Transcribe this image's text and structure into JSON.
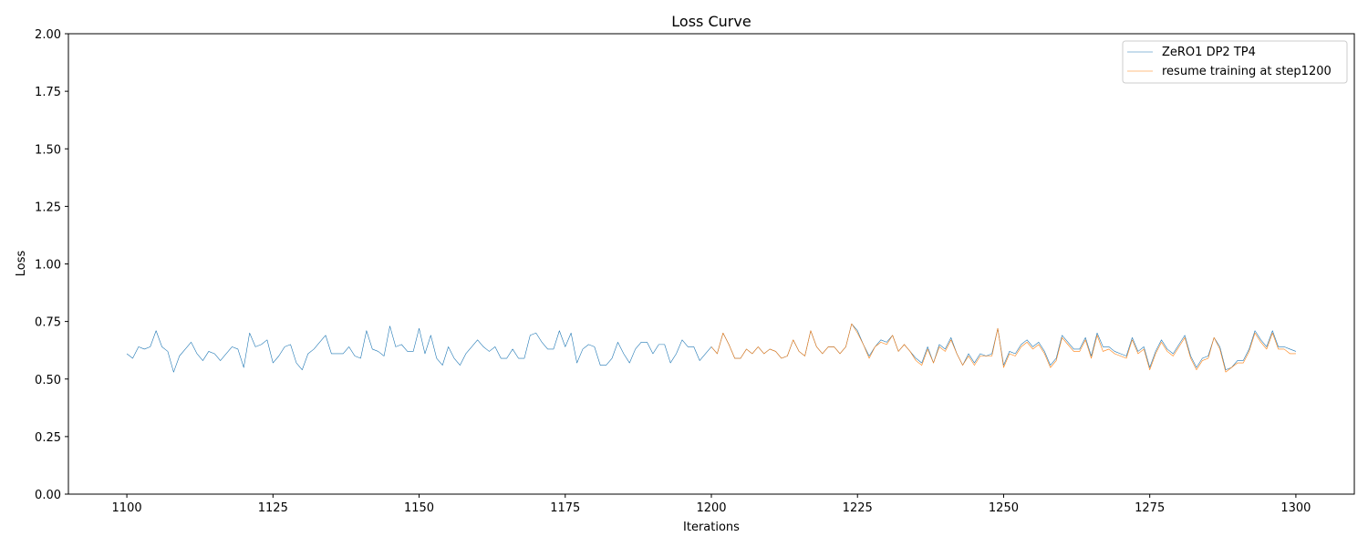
{
  "chart_data": {
    "type": "line",
    "title": "Loss Curve",
    "xlabel": "Iterations",
    "ylabel": "Loss",
    "xlim": [
      1090,
      1310
    ],
    "ylim": [
      0.0,
      2.0
    ],
    "xticks": [
      1100,
      1125,
      1150,
      1175,
      1200,
      1225,
      1250,
      1275,
      1300
    ],
    "xtick_labels": [
      "1100",
      "1125",
      "1150",
      "1175",
      "1200",
      "1225",
      "1250",
      "1275",
      "1300"
    ],
    "yticks": [
      0.0,
      0.25,
      0.5,
      0.75,
      1.0,
      1.25,
      1.5,
      1.75,
      2.0
    ],
    "ytick_labels": [
      "0.00",
      "0.25",
      "0.50",
      "0.75",
      "1.00",
      "1.25",
      "1.50",
      "1.75",
      "2.00"
    ],
    "grid": false,
    "legend_position": "top-right",
    "series": [
      {
        "name": "ZeRO1 DP2 TP4",
        "color": "#1f77b4",
        "x_start": 1100,
        "x_step": 1,
        "y": [
          0.61,
          0.59,
          0.64,
          0.63,
          0.64,
          0.71,
          0.64,
          0.62,
          0.53,
          0.6,
          0.63,
          0.66,
          0.61,
          0.58,
          0.62,
          0.61,
          0.58,
          0.61,
          0.64,
          0.63,
          0.55,
          0.7,
          0.64,
          0.65,
          0.67,
          0.57,
          0.6,
          0.64,
          0.65,
          0.57,
          0.54,
          0.61,
          0.63,
          0.66,
          0.69,
          0.61,
          0.61,
          0.61,
          0.64,
          0.6,
          0.59,
          0.71,
          0.63,
          0.62,
          0.6,
          0.73,
          0.64,
          0.65,
          0.62,
          0.62,
          0.72,
          0.61,
          0.69,
          0.59,
          0.56,
          0.64,
          0.59,
          0.56,
          0.61,
          0.64,
          0.67,
          0.64,
          0.62,
          0.64,
          0.59,
          0.59,
          0.63,
          0.59,
          0.59,
          0.69,
          0.7,
          0.66,
          0.63,
          0.63,
          0.71,
          0.64,
          0.7,
          0.57,
          0.63,
          0.65,
          0.64,
          0.56,
          0.56,
          0.59,
          0.66,
          0.61,
          0.57,
          0.63,
          0.66,
          0.66,
          0.61,
          0.65,
          0.65,
          0.57,
          0.61,
          0.67,
          0.64,
          0.64,
          0.58,
          0.61,
          0.64,
          0.61,
          0.7,
          0.65,
          0.59,
          0.59,
          0.63,
          0.61,
          0.64,
          0.61,
          0.63,
          0.62,
          0.59,
          0.6,
          0.67,
          0.62,
          0.6,
          0.71,
          0.64,
          0.61,
          0.64,
          0.64,
          0.61,
          0.64,
          0.74,
          0.71,
          0.65,
          0.6,
          0.64,
          0.67,
          0.66,
          0.69,
          0.62,
          0.65,
          0.62,
          0.59,
          0.57,
          0.64,
          0.57,
          0.65,
          0.63,
          0.68,
          0.61,
          0.56,
          0.61,
          0.57,
          0.61,
          0.6,
          0.61,
          0.72,
          0.56,
          0.62,
          0.61,
          0.65,
          0.67,
          0.64,
          0.66,
          0.62,
          0.56,
          0.59,
          0.69,
          0.66,
          0.63,
          0.63,
          0.68,
          0.6,
          0.7,
          0.64,
          0.64,
          0.62,
          0.61,
          0.6,
          0.68,
          0.62,
          0.64,
          0.55,
          0.62,
          0.67,
          0.63,
          0.61,
          0.65,
          0.69,
          0.6,
          0.55,
          0.59,
          0.6,
          0.68,
          0.64,
          0.54,
          0.55,
          0.58,
          0.58,
          0.63,
          0.71,
          0.67,
          0.64,
          0.71,
          0.64,
          0.64,
          0.63,
          0.62
        ]
      },
      {
        "name": "resume training at step1200",
        "color": "#ff7f0e",
        "x_start": 1200,
        "x_step": 1,
        "y": [
          0.64,
          0.61,
          0.7,
          0.65,
          0.59,
          0.59,
          0.63,
          0.61,
          0.64,
          0.61,
          0.63,
          0.62,
          0.59,
          0.6,
          0.67,
          0.62,
          0.6,
          0.71,
          0.64,
          0.61,
          0.64,
          0.64,
          0.61,
          0.64,
          0.74,
          0.7,
          0.65,
          0.59,
          0.64,
          0.66,
          0.65,
          0.69,
          0.62,
          0.65,
          0.62,
          0.58,
          0.56,
          0.63,
          0.57,
          0.64,
          0.62,
          0.67,
          0.61,
          0.56,
          0.6,
          0.56,
          0.6,
          0.6,
          0.6,
          0.72,
          0.55,
          0.61,
          0.6,
          0.64,
          0.66,
          0.63,
          0.65,
          0.61,
          0.55,
          0.58,
          0.68,
          0.65,
          0.62,
          0.62,
          0.67,
          0.59,
          0.69,
          0.62,
          0.63,
          0.61,
          0.6,
          0.59,
          0.67,
          0.61,
          0.63,
          0.54,
          0.61,
          0.66,
          0.62,
          0.6,
          0.64,
          0.68,
          0.59,
          0.54,
          0.58,
          0.59,
          0.68,
          0.63,
          0.53,
          0.55,
          0.57,
          0.57,
          0.62,
          0.7,
          0.66,
          0.63,
          0.7,
          0.63,
          0.63,
          0.61,
          0.61
        ]
      }
    ]
  }
}
